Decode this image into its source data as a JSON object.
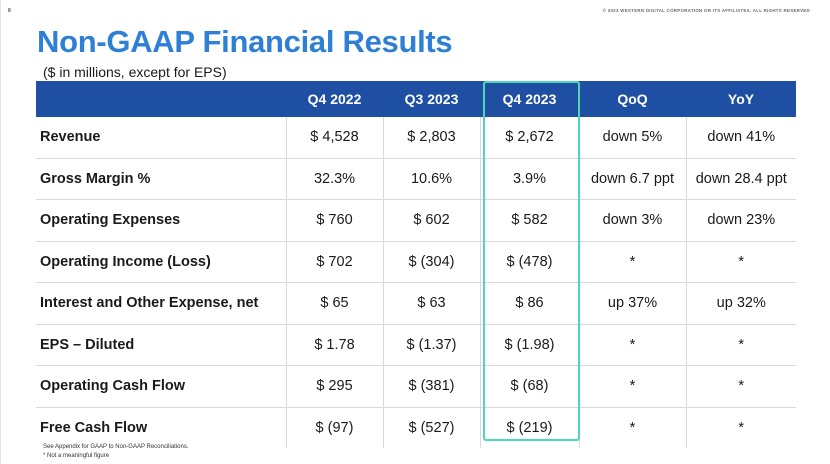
{
  "page_number": "8",
  "copyright": "© 2023 WESTERN DIGITAL CORPORATION OR ITS AFFILIATES. ALL RIGHTS RESERVED",
  "title": "Non-GAAP Financial Results",
  "subtitle": "($ in millions, except for EPS)",
  "highlight_color": "#4fd6b8",
  "header_color": "#1f4fa3",
  "title_color": "#2e7fd6",
  "columns": [
    "",
    "Q4 2022",
    "Q3 2023",
    "Q4 2023",
    "QoQ",
    "YoY"
  ],
  "rows": [
    {
      "label": "Revenue",
      "q4_2022": "$ 4,528",
      "q3_2023": "$ 2,803",
      "q4_2023": "$ 2,672",
      "qoq": "down 5%",
      "yoy": "down 41%"
    },
    {
      "label": "Gross Margin %",
      "q4_2022": "32.3%",
      "q3_2023": "10.6%",
      "q4_2023": "3.9%",
      "qoq": "down 6.7 ppt",
      "yoy": "down 28.4 ppt"
    },
    {
      "label": "Operating Expenses",
      "q4_2022": "$ 760",
      "q3_2023": "$ 602",
      "q4_2023": "$ 582",
      "qoq": "down 3%",
      "yoy": "down 23%"
    },
    {
      "label": "Operating Income (Loss)",
      "q4_2022": "$ 702",
      "q3_2023": "$ (304)",
      "q4_2023": "$ (478)",
      "qoq": "*",
      "yoy": "*"
    },
    {
      "label": "Interest and Other Expense, net",
      "q4_2022": "$ 65",
      "q3_2023": "$ 63",
      "q4_2023": "$ 86",
      "qoq": "up 37%",
      "yoy": "up 32%"
    },
    {
      "label": "EPS – Diluted",
      "q4_2022": "$ 1.78",
      "q3_2023": "$ (1.37)",
      "q4_2023": "$ (1.98)",
      "qoq": "*",
      "yoy": "*"
    },
    {
      "label": "Operating Cash Flow",
      "q4_2022": "$ 295",
      "q3_2023": "$ (381)",
      "q4_2023": "$ (68)",
      "qoq": "*",
      "yoy": "*"
    },
    {
      "label": "Free Cash Flow",
      "q4_2022": "$ (97)",
      "q3_2023": "$ (527)",
      "q4_2023": "$ (219)",
      "qoq": "*",
      "yoy": "*"
    }
  ],
  "footnotes": [
    "See Appendix for GAAP to Non-GAAP Reconciliations.",
    "* Not a meaningful figure"
  ]
}
